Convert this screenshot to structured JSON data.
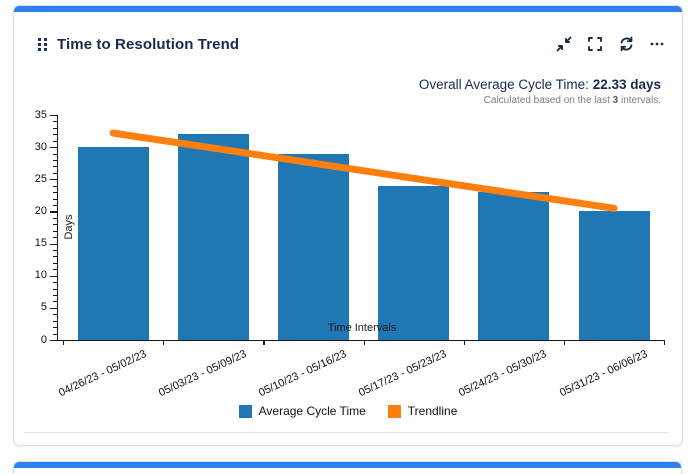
{
  "card": {
    "title": "Time to Resolution Trend",
    "toolbar_icons": [
      "collapse-arrows-icon",
      "fullscreen-brackets-icon",
      "refresh-icon",
      "ellipsis-icon"
    ],
    "stat": {
      "label": "Overall Average Cycle Time: ",
      "value": "22.33 days",
      "note_prefix": "Calculated based on the last ",
      "note_bold": "3",
      "note_suffix": " intervals."
    }
  },
  "chart_data": {
    "type": "bar",
    "title": "",
    "xlabel": "Time Intervals",
    "ylabel": "Days",
    "categories": [
      "04/26/23 - 05/02/23",
      "05/03/23 - 05/09/23",
      "05/10/23 - 05/16/23",
      "05/17/23 - 05/23/23",
      "05/24/23 - 05/30/23",
      "05/31/23 - 06/06/23"
    ],
    "series": [
      {
        "name": "Average Cycle Time",
        "type": "bar",
        "color": "#1f77b4",
        "values": [
          30,
          32,
          29,
          24,
          23,
          20
        ]
      },
      {
        "name": "Trendline",
        "type": "line",
        "color": "#ff7f0e",
        "values": [
          32.19,
          29.85,
          27.5,
          25.16,
          22.82,
          20.48
        ]
      }
    ],
    "ylim": [
      0,
      35
    ],
    "yticks": [
      0,
      5,
      10,
      15,
      20,
      25,
      30,
      35
    ],
    "grid": false,
    "legend_position": "bottom"
  },
  "colors": {
    "accent": "#2e80ec",
    "bar": "#1f77b4",
    "trendline": "#ff7f0e",
    "title_text": "#172b4d",
    "axis": "#1a1a1a"
  }
}
